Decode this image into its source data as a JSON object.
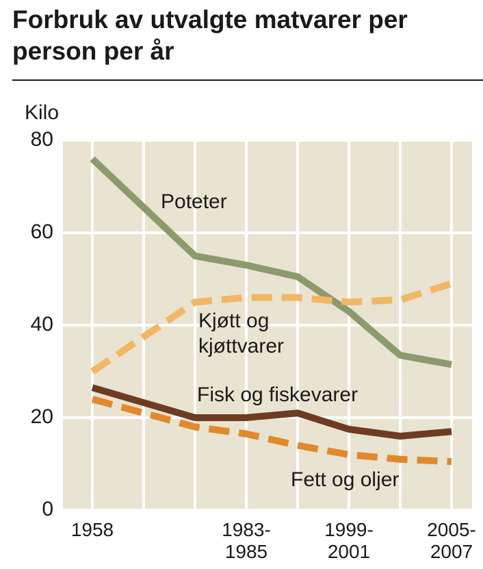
{
  "chart_data": {
    "type": "line",
    "title": "Forbruk av utvalgte matvarer per person per år",
    "y_label": "Kilo",
    "categories": [
      "1958",
      null,
      "1983-1985",
      null,
      "1999-2001",
      null,
      "2005-2007"
    ],
    "ylim": [
      0,
      80
    ],
    "yticks": [
      0,
      20,
      40,
      60,
      80
    ],
    "grid": true,
    "series": [
      {
        "name": "Poteter",
        "color": "#8c9a6c",
        "dashed": false,
        "values": [
          76,
          55,
          53,
          50.5,
          43,
          33.5,
          31.5
        ]
      },
      {
        "name": "Kjøtt og kjøttvarer",
        "color": "#f2b765",
        "dashed": true,
        "values": [
          30,
          45,
          46,
          46,
          45,
          45.5,
          49
        ]
      },
      {
        "name": "Fisk og fiskevarer",
        "color": "#6e3c22",
        "dashed": false,
        "values": [
          26.5,
          20,
          20,
          21,
          17.5,
          16,
          17
        ]
      },
      {
        "name": "Fett og oljer",
        "color": "#e2892c",
        "dashed": true,
        "values": [
          24,
          18,
          16.5,
          14,
          12,
          11,
          10.5
        ]
      }
    ]
  }
}
